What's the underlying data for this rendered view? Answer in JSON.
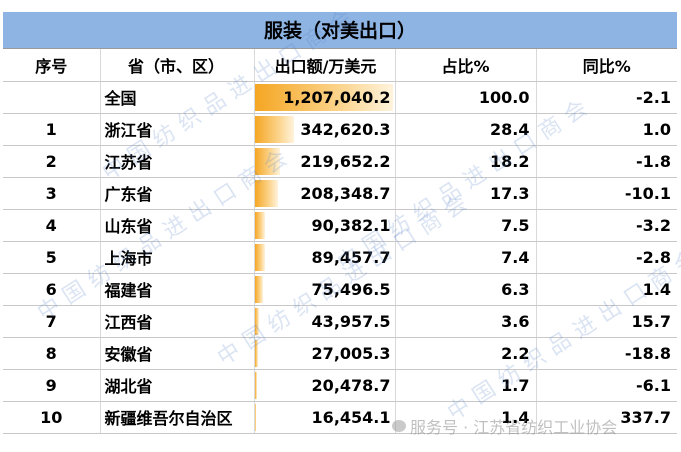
{
  "title": "服装（对美出口）",
  "headers": [
    "序号",
    "省（市、区）",
    "出口额/万美元",
    "占比%",
    "同比%"
  ],
  "rows": [
    {
      "no": "",
      "region": "全国",
      "value": "1,207,040.2",
      "share": "100.0",
      "yoy": "-2.1",
      "bar_fraction": 1.0
    },
    {
      "no": "1",
      "region": "浙江省",
      "value": "342,620.3",
      "share": "28.4",
      "yoy": "1.0",
      "bar_fraction": 0.284
    },
    {
      "no": "2",
      "region": "江苏省",
      "value": "219,652.2",
      "share": "18.2",
      "yoy": "-1.8",
      "bar_fraction": 0.182
    },
    {
      "no": "3",
      "region": "广东省",
      "value": "208,348.7",
      "share": "17.3",
      "yoy": "-10.1",
      "bar_fraction": 0.173
    },
    {
      "no": "4",
      "region": "山东省",
      "value": "90,382.1",
      "share": "7.5",
      "yoy": "-3.2",
      "bar_fraction": 0.075
    },
    {
      "no": "5",
      "region": "上海市",
      "value": "89,457.7",
      "share": "7.4",
      "yoy": "-2.8",
      "bar_fraction": 0.074
    },
    {
      "no": "6",
      "region": "福建省",
      "value": "75,496.5",
      "share": "6.3",
      "yoy": "1.4",
      "bar_fraction": 0.063
    },
    {
      "no": "7",
      "region": "江西省",
      "value": "43,957.5",
      "share": "3.6",
      "yoy": "15.7",
      "bar_fraction": 0.036
    },
    {
      "no": "8",
      "region": "安徽省",
      "value": "27,005.3",
      "share": "2.2",
      "yoy": "-18.8",
      "bar_fraction": 0.022
    },
    {
      "no": "9",
      "region": "湖北省",
      "value": "20,478.7",
      "share": "1.7",
      "yoy": "-6.1",
      "bar_fraction": 0.017
    },
    {
      "no": "10",
      "region": "新疆维吾尔自治区",
      "value": "16,454.1",
      "share": "1.4",
      "yoy": "337.7",
      "bar_fraction": 0.014
    }
  ],
  "watermark_text": "中国纺织品进出口商会",
  "footer_watermark": "服务号 · 江苏省纺织工业协会",
  "colors": {
    "title_bg": "#8eb4e3",
    "bar": "#f5a623"
  }
}
